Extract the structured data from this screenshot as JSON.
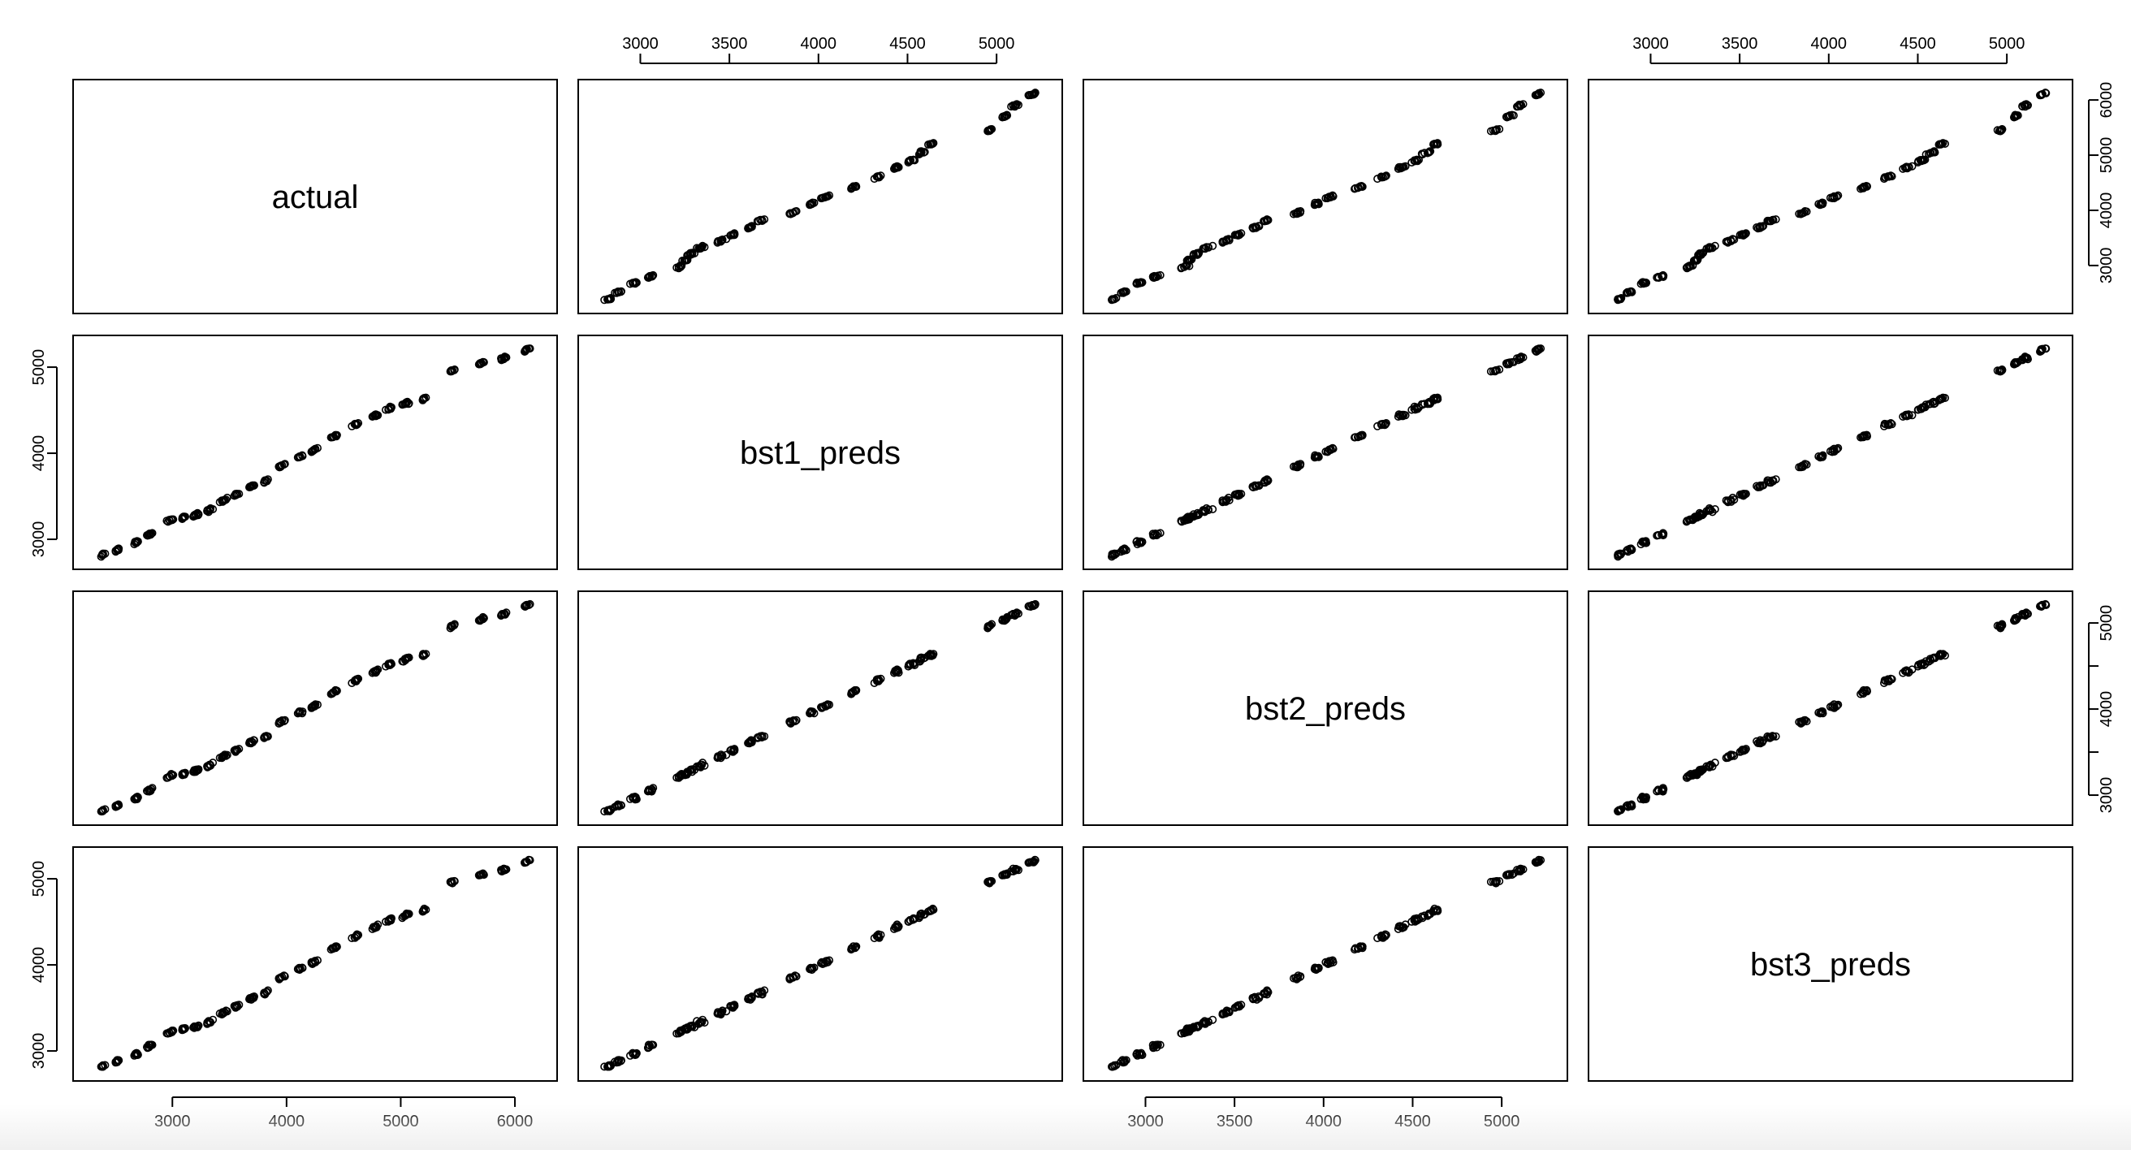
{
  "chart_data": {
    "type": "scatter",
    "variables": [
      "actual",
      "bst1_preds",
      "bst2_preds",
      "bst3_preds"
    ],
    "ranges": {
      "actual": [
        2300,
        6200
      ],
      "bst1_preds": [
        2760,
        5260
      ],
      "bst2_preds": [
        2760,
        5260
      ],
      "bst3_preds": [
        2760,
        5260
      ]
    },
    "ticks": {
      "actual": [
        "3000",
        "4000",
        "5000",
        "6000"
      ],
      "bst1_preds": [
        "3000",
        "4000",
        "5000"
      ],
      "bst2_preds": [
        "3000",
        "4000",
        "5000"
      ],
      "bst3_preds": [
        "3000",
        "4000",
        "5000"
      ],
      "preds_top_bottom": [
        "3000",
        "3500",
        "4000",
        "4500",
        "5000"
      ]
    },
    "axes": {
      "top": [
        {
          "panel_col": 1,
          "ticks": [
            3000,
            3500,
            4000,
            4500,
            5000
          ]
        },
        {
          "panel_col": 3,
          "ticks": [
            3000,
            3500,
            4000,
            4500,
            5000
          ]
        }
      ],
      "bottom": [
        {
          "panel_col": 0,
          "ticks": [
            3000,
            4000,
            5000,
            6000
          ]
        },
        {
          "panel_col": 2,
          "ticks": [
            3000,
            3500,
            4000,
            4500,
            5000
          ]
        }
      ],
      "left": [
        {
          "panel_row": 1,
          "ticks": [
            3000,
            4000,
            5000
          ]
        },
        {
          "panel_row": 3,
          "ticks": [
            3000,
            4000,
            5000
          ]
        }
      ],
      "right": [
        {
          "panel_row": 0,
          "ticks": [
            3000,
            4000,
            5000,
            6000
          ]
        },
        {
          "panel_row": 2,
          "ticks": [
            3000,
            3500,
            4000,
            4500,
            5000
          ],
          "labels": [
            3000,
            4000,
            5000
          ]
        }
      ]
    },
    "clusters": [
      [
        2390,
        2820,
        2850,
        2800,
        2830
      ],
      [
        2520,
        2880,
        2900,
        2860,
        2880
      ],
      [
        2680,
        2960,
        2980,
        2940,
        2960
      ],
      [
        2800,
        3060,
        3080,
        3050,
        3070
      ],
      [
        2980,
        3220,
        3240,
        3210,
        3230
      ],
      [
        3100,
        3250,
        3270,
        3240,
        3260
      ],
      [
        3200,
        3280,
        3300,
        3270,
        3290
      ],
      [
        3320,
        3340,
        3360,
        3330,
        3350
      ],
      [
        3450,
        3450,
        3470,
        3440,
        3460
      ],
      [
        3560,
        3520,
        3540,
        3510,
        3530
      ],
      [
        3700,
        3620,
        3640,
        3610,
        3630
      ],
      [
        3820,
        3680,
        3700,
        3670,
        3690
      ],
      [
        3950,
        3850,
        3870,
        3840,
        3860
      ],
      [
        4120,
        3960,
        3980,
        3950,
        3970
      ],
      [
        4250,
        4040,
        4060,
        4030,
        4050
      ],
      [
        4420,
        4200,
        4220,
        4190,
        4210
      ],
      [
        4600,
        4330,
        4350,
        4320,
        4340
      ],
      [
        4780,
        4440,
        4460,
        4430,
        4450
      ],
      [
        4900,
        4520,
        4540,
        4510,
        4530
      ],
      [
        5050,
        4580,
        4600,
        4570,
        4590
      ],
      [
        5200,
        4630,
        4650,
        4620,
        4640
      ],
      [
        5450,
        4960,
        4980,
        4950,
        4970
      ],
      [
        5700,
        5040,
        5060,
        5030,
        5050
      ],
      [
        5900,
        5100,
        5120,
        5090,
        5110
      ],
      [
        6100,
        5200,
        5220,
        5190,
        5210
      ]
    ]
  }
}
